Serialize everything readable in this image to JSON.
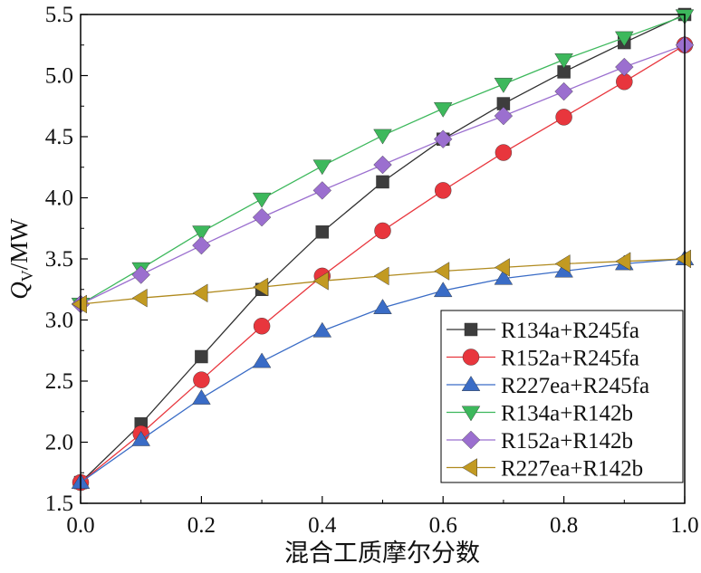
{
  "chart_data": {
    "type": "line",
    "xlabel": "混合工质摩尔分数",
    "ylabel": "Q",
    "ylabel_sub": "V",
    "ylabel_unit": "/MW",
    "xlim": [
      0,
      1.0
    ],
    "ylim": [
      1.5,
      5.5
    ],
    "xticks": [
      "0.0",
      "0.2",
      "0.4",
      "0.6",
      "0.8",
      "1.0"
    ],
    "yticks": [
      "1.5",
      "2.0",
      "2.5",
      "3.0",
      "3.5",
      "4.0",
      "4.5",
      "5.0",
      "5.5"
    ],
    "legend_position": "bottom-right",
    "x": [
      0.0,
      0.1,
      0.2,
      0.3,
      0.4,
      0.5,
      0.6,
      0.7,
      0.8,
      0.9,
      1.0
    ],
    "series": [
      {
        "name": "R134a+R245fa",
        "marker": "square",
        "color": "#3d3d3d",
        "line_color": "#303030",
        "values": [
          1.67,
          2.15,
          2.7,
          3.25,
          3.72,
          4.13,
          4.48,
          4.77,
          5.03,
          5.27,
          5.5
        ]
      },
      {
        "name": "R152a+R245fa",
        "marker": "circle",
        "color": "#e8363d",
        "line_color": "#e8363d",
        "values": [
          1.67,
          2.07,
          2.51,
          2.95,
          3.36,
          3.73,
          4.06,
          4.37,
          4.66,
          4.95,
          5.25
        ]
      },
      {
        "name": "R227ea+R245fa",
        "marker": "triangle-up",
        "color": "#3a6cc6",
        "line_color": "#3a6cc6",
        "values": [
          1.67,
          2.02,
          2.36,
          2.66,
          2.91,
          3.1,
          3.24,
          3.34,
          3.4,
          3.46,
          3.5
        ]
      },
      {
        "name": "R134a+R142b",
        "marker": "triangle-down",
        "color": "#3db85c",
        "line_color": "#3db85c",
        "values": [
          3.13,
          3.42,
          3.72,
          3.99,
          4.26,
          4.51,
          4.73,
          4.93,
          5.13,
          5.31,
          5.49
        ]
      },
      {
        "name": "R152a+R142b",
        "marker": "diamond",
        "color": "#9b6fcf",
        "line_color": "#9b6fcf",
        "values": [
          3.13,
          3.37,
          3.61,
          3.84,
          4.06,
          4.27,
          4.48,
          4.67,
          4.87,
          5.07,
          5.25
        ]
      },
      {
        "name": "R227ea+R142b",
        "marker": "triangle-left",
        "color": "#c29a22",
        "line_color": "#b08a1e",
        "values": [
          3.13,
          3.18,
          3.22,
          3.27,
          3.32,
          3.36,
          3.4,
          3.43,
          3.46,
          3.48,
          3.5
        ]
      }
    ]
  }
}
